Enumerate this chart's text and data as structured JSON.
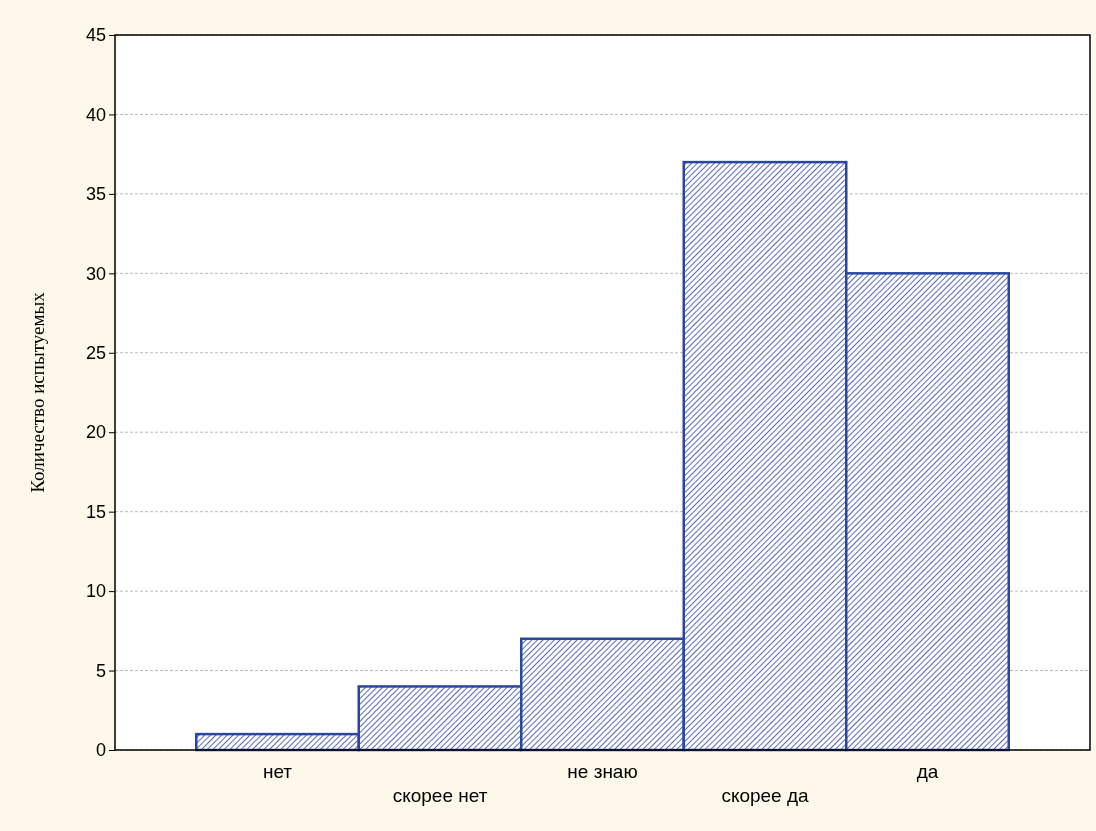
{
  "chart_data": {
    "type": "bar",
    "ylabel": "Количество испытуемых",
    "categories": [
      "нет",
      "скорее нет",
      "не знаю",
      "скорее да",
      "да"
    ],
    "values": [
      1,
      4,
      7,
      37,
      30
    ],
    "color": "#2a47a0",
    "ylim": [
      0,
      45
    ],
    "yticks": [
      0,
      5,
      10,
      15,
      20,
      25,
      30,
      35,
      40,
      45
    ],
    "grid": "y"
  }
}
